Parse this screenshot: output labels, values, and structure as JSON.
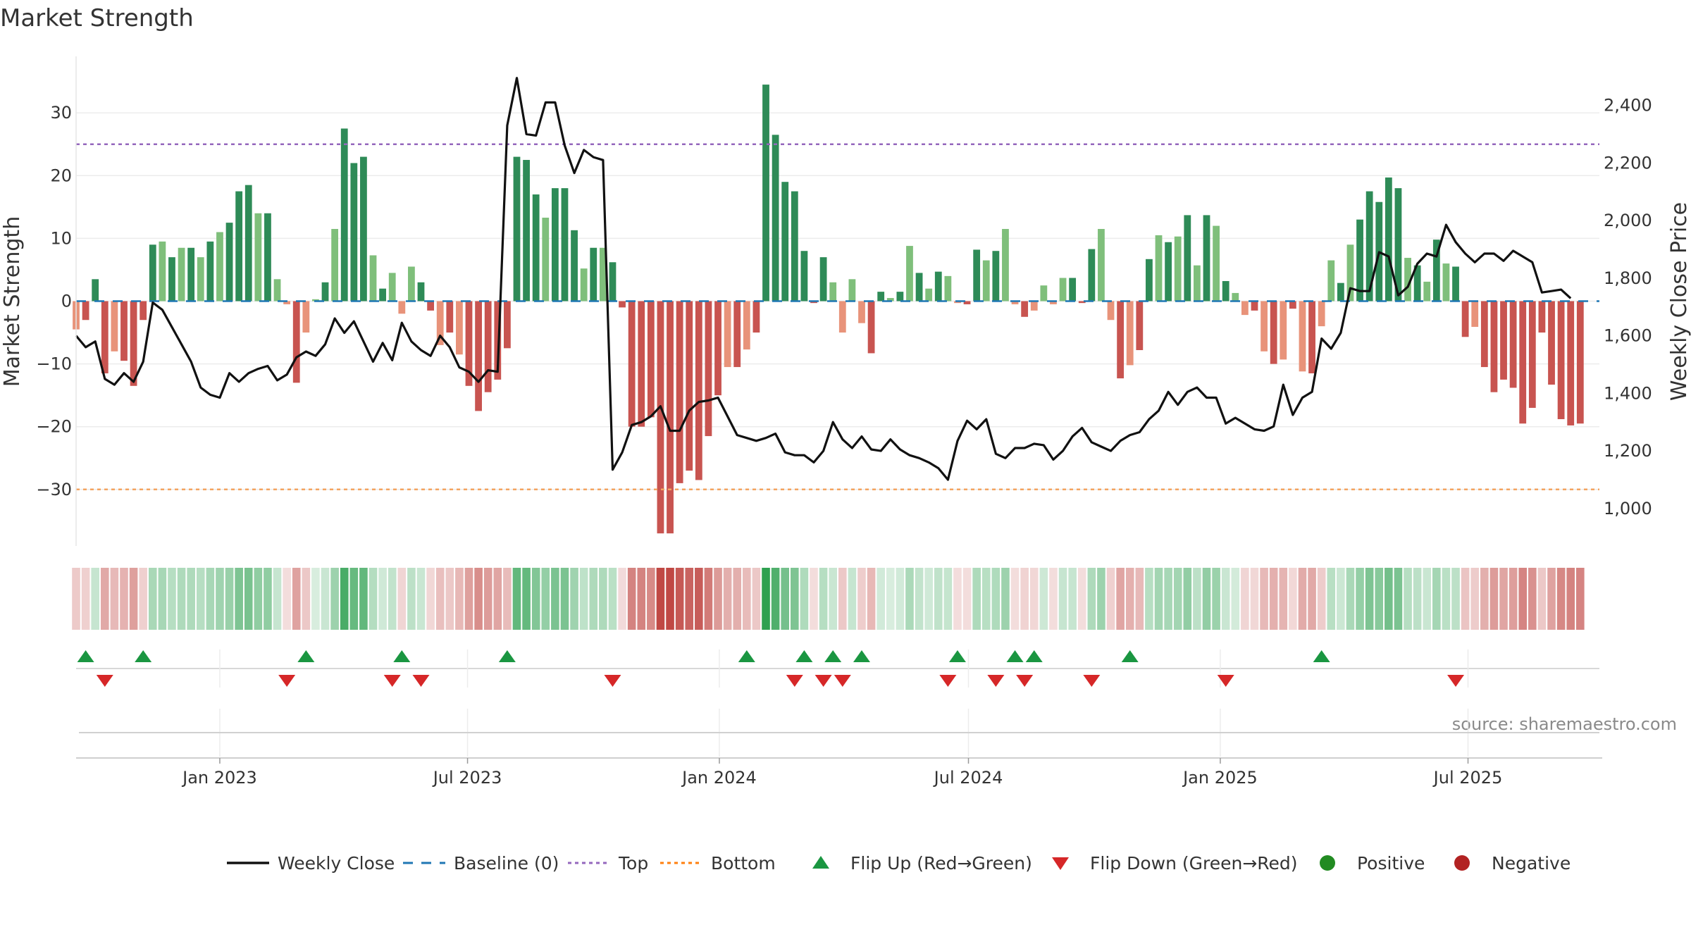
{
  "chart_data": {
    "type": "bar",
    "title": "Market Strength",
    "source": "source: sharemaestro.com",
    "ylabel_left": "Market Strength",
    "ylabel_right": "Weekly Close Price",
    "left_ylim": [
      -39,
      39
    ],
    "right_ylim": [
      870,
      2570
    ],
    "left_ticks": [
      30,
      20,
      10,
      0,
      -10,
      -20,
      -30
    ],
    "left_tick_labels": [
      "30",
      "20",
      "10",
      "0",
      "−10",
      "−20",
      "−30"
    ],
    "right_ticks": [
      2400,
      2200,
      2000,
      1800,
      1600,
      1400,
      1200,
      1000
    ],
    "right_tick_labels": [
      "2,400",
      "2,200",
      "2,000",
      "1,800",
      "1,600",
      "1,400",
      "1,200",
      "1,000"
    ],
    "x_start": "2022-09-18",
    "x_end": "2025-10-05",
    "x_ticks": [
      "2023-01-01",
      "2023-07-01",
      "2024-01-01",
      "2024-07-01",
      "2025-01-01",
      "2025-07-01"
    ],
    "x_tick_labels": [
      "Jan 2023",
      "Jul 2023",
      "Jan 2024",
      "Jul 2024",
      "Jan 2025",
      "Jul 2025"
    ],
    "first_week": "2022-09-18",
    "top_level": 25,
    "bottom_level": -30,
    "baseline_level": 0,
    "strength": [
      -4.5,
      -3,
      3.5,
      -11.5,
      -8,
      -9.5,
      -13.5,
      -3,
      9,
      9.5,
      7,
      8.5,
      8.5,
      7,
      9.5,
      11,
      12.5,
      17.5,
      18.5,
      14,
      14,
      3.5,
      -0.5,
      -13,
      -5,
      0.3,
      3,
      11.5,
      27.5,
      22,
      23,
      7.3,
      2,
      4.5,
      -2,
      5.5,
      3,
      -1.5,
      -7,
      -5,
      -8.5,
      -13.5,
      -17.5,
      -14.5,
      -12.5,
      -7.5,
      23,
      22.5,
      17,
      13.3,
      18,
      18,
      11.3,
      5.2,
      8.5,
      8.5,
      6.2,
      -1,
      -20,
      -20,
      -18.5,
      -37,
      -37,
      -29,
      -27,
      -28.5,
      -21.5,
      -15,
      -10.5,
      -10.5,
      -7.7,
      -5,
      34.5,
      26.5,
      19,
      17.5,
      8,
      -0.3,
      7,
      3,
      -5,
      3.5,
      -3.5,
      -8.3,
      1.5,
      0.5,
      1.5,
      8.8,
      4.5,
      2,
      4.7,
      4,
      -0.3,
      -0.5,
      8.2,
      6.5,
      8,
      11.5,
      -0.5,
      -2.5,
      -1.5,
      2.5,
      -0.5,
      3.7,
      3.7,
      -0.3,
      8.3,
      11.5,
      -3,
      -12.3,
      -10.2,
      -7.8,
      6.7,
      10.5,
      9.4,
      10.3,
      13.7,
      5.7,
      13.7,
      12,
      3.2,
      1.3,
      -2.2,
      -1.5,
      -8,
      -10,
      -9.3,
      -1.2,
      -11.2,
      -11.5,
      -4,
      6.5,
      2.9,
      9,
      13,
      17.5,
      15.8,
      19.7,
      18,
      6.9,
      5.7,
      3.1,
      9.8,
      6,
      5.5,
      -5.7,
      -4.1,
      -10.5,
      -14.5,
      -12.5,
      -13.8,
      -19.5,
      -17,
      -5,
      -13.3,
      -18.8,
      -19.8,
      -19.5
    ],
    "close": [
      1600,
      1560,
      1580,
      1450,
      1430,
      1470,
      1440,
      1510,
      1715,
      1690,
      1630,
      1570,
      1510,
      1420,
      1395,
      1385,
      1470,
      1440,
      1470,
      1485,
      1495,
      1445,
      1465,
      1525,
      1545,
      1530,
      1570,
      1660,
      1610,
      1650,
      1580,
      1510,
      1575,
      1515,
      1645,
      1580,
      1550,
      1530,
      1600,
      1560,
      1490,
      1475,
      1440,
      1480,
      1475,
      2330,
      2495,
      2300,
      2295,
      2410,
      2410,
      2260,
      2165,
      2245,
      2220,
      2210,
      1135,
      1195,
      1290,
      1300,
      1320,
      1355,
      1270,
      1270,
      1340,
      1370,
      1375,
      1385,
      1320,
      1255,
      1245,
      1235,
      1245,
      1260,
      1195,
      1185,
      1185,
      1160,
      1200,
      1300,
      1240,
      1210,
      1250,
      1205,
      1200,
      1240,
      1205,
      1185,
      1175,
      1160,
      1140,
      1100,
      1235,
      1305,
      1275,
      1310,
      1190,
      1175,
      1210,
      1210,
      1225,
      1220,
      1170,
      1200,
      1250,
      1280,
      1230,
      1215,
      1200,
      1235,
      1255,
      1265,
      1310,
      1340,
      1405,
      1360,
      1405,
      1420,
      1385,
      1385,
      1295,
      1315,
      1295,
      1275,
      1270,
      1285,
      1430,
      1325,
      1385,
      1405,
      1590,
      1555,
      1610,
      1765,
      1755,
      1755,
      1890,
      1875,
      1740,
      1770,
      1850,
      1885,
      1875,
      1985,
      1925,
      1885,
      1855,
      1885,
      1885,
      1860,
      1895,
      1875,
      1855,
      1750,
      1755,
      1760,
      1730
    ],
    "flip_up_indices": [
      1,
      7,
      24,
      34,
      45,
      70,
      76,
      79,
      82,
      92,
      98,
      100,
      110,
      130
    ],
    "flip_down_indices": [
      3,
      22,
      33,
      36,
      56,
      75,
      78,
      80,
      91,
      96,
      99,
      106,
      120,
      144
    ],
    "legend": [
      {
        "label": "Weekly Close",
        "marker": "line-solid",
        "color": "#111111"
      },
      {
        "label": "Baseline (0)",
        "marker": "line-dashed",
        "color": "#1f77b4"
      },
      {
        "label": "Top",
        "marker": "line-dotted",
        "color": "#9467bd"
      },
      {
        "label": "Bottom",
        "marker": "line-dotted",
        "color": "#ff7f0e"
      },
      {
        "label": "Flip Up (Red→Green)",
        "marker": "triangle-up",
        "color": "#1a9641"
      },
      {
        "label": "Flip Down (Green→Red)",
        "marker": "triangle-down",
        "color": "#d62728"
      },
      {
        "label": "Positive",
        "marker": "circle",
        "color": "#228b22"
      },
      {
        "label": "Negative",
        "marker": "circle",
        "color": "#b22222"
      }
    ]
  },
  "colors": {
    "strong_positive": "#2e8b57",
    "weak_positive": "#7fbf7b",
    "strong_negative": "#c85450",
    "weak_negative": "#e8937a",
    "price_line": "#111111",
    "top_line": "#9467bd",
    "bottom_line": "#f4a460",
    "baseline": "#1f77b4",
    "flip_up": "#1a9641",
    "flip_down": "#d62728"
  }
}
